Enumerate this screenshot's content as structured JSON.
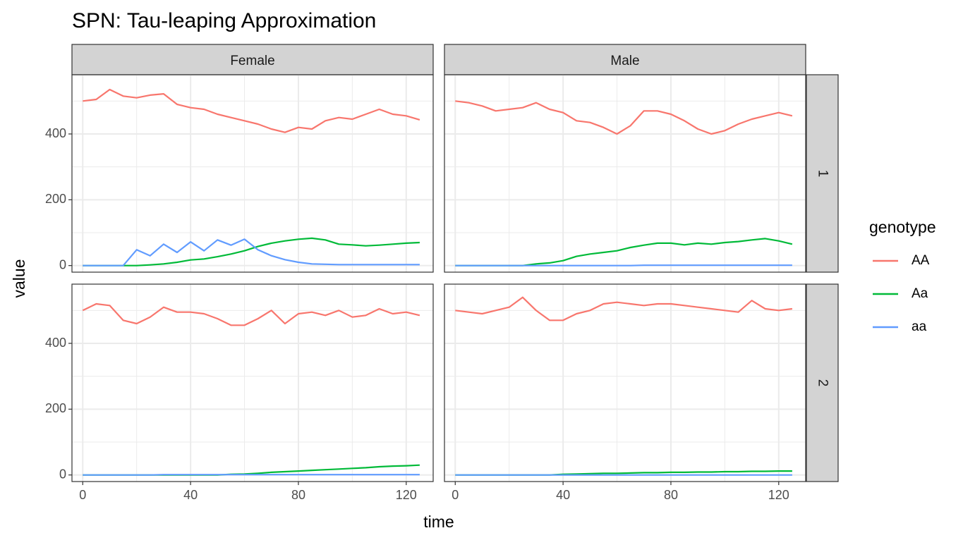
{
  "chart_data": {
    "type": "line",
    "title": "SPN: Tau-leaping Approximation",
    "xlabel": "time",
    "ylabel": "value",
    "xlim": [
      -4,
      130
    ],
    "ylim": [
      -20,
      580
    ],
    "x_ticks": [
      0,
      40,
      80,
      120
    ],
    "y_ticks": [
      0,
      200,
      400
    ],
    "grid": true,
    "legend": {
      "title": "genotype",
      "position": "right",
      "entries": [
        {
          "name": "AA",
          "color": "#F8766D"
        },
        {
          "name": "Aa",
          "color": "#00BA38"
        },
        {
          "name": "aa",
          "color": "#619CFF"
        }
      ]
    },
    "facet_cols": [
      "Female",
      "Male"
    ],
    "facet_rows": [
      "1",
      "2"
    ],
    "x": [
      0,
      5,
      10,
      15,
      20,
      25,
      30,
      35,
      40,
      45,
      50,
      55,
      60,
      65,
      70,
      75,
      80,
      85,
      90,
      95,
      100,
      105,
      110,
      115,
      120,
      125
    ],
    "panels": [
      {
        "col": "Female",
        "row": "1",
        "series": [
          {
            "name": "AA",
            "values": [
              500,
              505,
              535,
              515,
              510,
              518,
              522,
              490,
              480,
              475,
              460,
              450,
              440,
              430,
              415,
              405,
              420,
              415,
              440,
              450,
              445,
              460,
              475,
              460,
              455,
              443
            ]
          },
          {
            "name": "Aa",
            "values": [
              0,
              0,
              0,
              0,
              0,
              2,
              5,
              10,
              17,
              20,
              27,
              35,
              45,
              58,
              68,
              75,
              80,
              83,
              78,
              65,
              63,
              60,
              62,
              65,
              68,
              70
            ]
          },
          {
            "name": "aa",
            "values": [
              0,
              0,
              0,
              0,
              48,
              30,
              65,
              40,
              72,
              45,
              78,
              62,
              80,
              48,
              30,
              18,
              10,
              5,
              4,
              3,
              3,
              3,
              3,
              3,
              3,
              3
            ]
          }
        ]
      },
      {
        "col": "Male",
        "row": "1",
        "series": [
          {
            "name": "AA",
            "values": [
              500,
              495,
              485,
              470,
              475,
              480,
              495,
              475,
              465,
              440,
              435,
              420,
              400,
              425,
              470,
              470,
              460,
              440,
              415,
              400,
              410,
              430,
              445,
              455,
              465,
              455
            ]
          },
          {
            "name": "Aa",
            "values": [
              0,
              0,
              0,
              0,
              0,
              0,
              5,
              8,
              15,
              28,
              35,
              40,
              45,
              55,
              62,
              68,
              68,
              63,
              68,
              65,
              70,
              73,
              78,
              82,
              75,
              65
            ]
          },
          {
            "name": "aa",
            "values": [
              0,
              0,
              0,
              0,
              0,
              0,
              0,
              0,
              0,
              0,
              0,
              0,
              0,
              0,
              1,
              1,
              1,
              1,
              1,
              1,
              1,
              1,
              1,
              1,
              1,
              1
            ]
          }
        ]
      },
      {
        "col": "Female",
        "row": "2",
        "series": [
          {
            "name": "AA",
            "values": [
              500,
              520,
              515,
              470,
              460,
              480,
              510,
              495,
              495,
              490,
              475,
              455,
              455,
              475,
              500,
              460,
              490,
              495,
              485,
              500,
              480,
              485,
              505,
              490,
              495,
              485
            ]
          },
          {
            "name": "Aa",
            "values": [
              0,
              0,
              0,
              0,
              0,
              0,
              0,
              0,
              0,
              0,
              0,
              2,
              3,
              5,
              8,
              10,
              12,
              14,
              16,
              18,
              20,
              22,
              25,
              27,
              28,
              30
            ]
          },
          {
            "name": "aa",
            "values": [
              0,
              0,
              0,
              0,
              0,
              0,
              1,
              1,
              1,
              1,
              1,
              1,
              1,
              1,
              1,
              1,
              1,
              1,
              1,
              1,
              1,
              1,
              1,
              1,
              1,
              1
            ]
          }
        ]
      },
      {
        "col": "Male",
        "row": "2",
        "series": [
          {
            "name": "AA",
            "values": [
              500,
              495,
              490,
              500,
              510,
              540,
              500,
              470,
              470,
              490,
              500,
              520,
              525,
              520,
              515,
              520,
              520,
              515,
              510,
              505,
              500,
              495,
              530,
              505,
              500,
              505
            ]
          },
          {
            "name": "Aa",
            "values": [
              0,
              0,
              0,
              0,
              0,
              0,
              0,
              0,
              2,
              3,
              4,
              5,
              5,
              6,
              7,
              7,
              8,
              8,
              9,
              9,
              10,
              10,
              11,
              11,
              12,
              12
            ]
          },
          {
            "name": "aa",
            "values": [
              0,
              0,
              0,
              0,
              0,
              0,
              0,
              0,
              0,
              0,
              0,
              0,
              0,
              0,
              0,
              0,
              0,
              0,
              0,
              0,
              0,
              0,
              0,
              0,
              0,
              0
            ]
          }
        ]
      }
    ]
  }
}
